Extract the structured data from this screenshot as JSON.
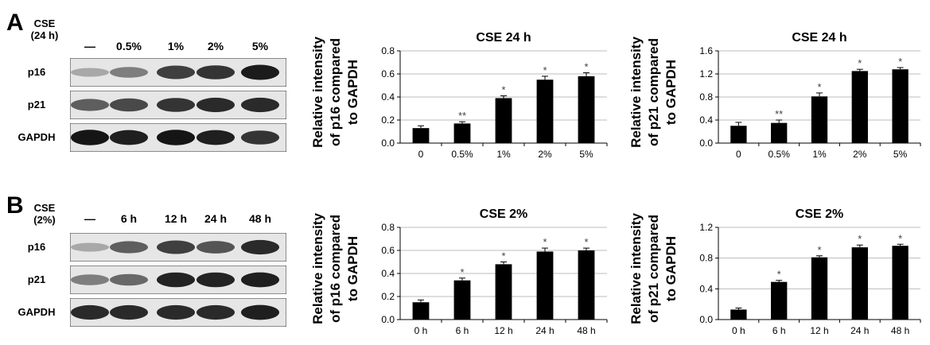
{
  "panels": [
    {
      "letter": "A",
      "blot": {
        "condition_label": [
          "CSE",
          "(24 h)"
        ],
        "lanes": [
          "—",
          "0.5%",
          "1%",
          "2%",
          "5%"
        ],
        "rows": [
          {
            "name": "p16",
            "intensities": [
              0.25,
              0.45,
              0.75,
              0.8,
              0.92
            ]
          },
          {
            "name": "p21",
            "intensities": [
              0.6,
              0.7,
              0.8,
              0.85,
              0.85
            ]
          },
          {
            "name": "GAPDH",
            "intensities": [
              0.95,
              0.9,
              0.95,
              0.9,
              0.8
            ]
          }
        ]
      }
    },
    {
      "letter": "B",
      "blot": {
        "condition_label": [
          "CSE",
          "(2%)"
        ],
        "lanes": [
          "—",
          "6 h",
          "12 h",
          "24 h",
          "48 h"
        ],
        "rows": [
          {
            "name": "p16",
            "intensities": [
              0.25,
              0.6,
              0.75,
              0.65,
              0.85
            ]
          },
          {
            "name": "p21",
            "intensities": [
              0.45,
              0.55,
              0.88,
              0.88,
              0.9
            ]
          },
          {
            "name": "GAPDH",
            "intensities": [
              0.85,
              0.85,
              0.85,
              0.85,
              0.9
            ]
          }
        ]
      }
    }
  ],
  "chart_data": [
    {
      "type": "bar",
      "title": "CSE 24 h",
      "ylabel": [
        "Relative intensity",
        "of p16 compared",
        "to GAPDH"
      ],
      "categories": [
        "0",
        "0.5%",
        "1%",
        "2%",
        "5%"
      ],
      "values": [
        0.13,
        0.17,
        0.39,
        0.55,
        0.58
      ],
      "errors": [
        0.02,
        0.015,
        0.02,
        0.03,
        0.03
      ],
      "significance": [
        "",
        "**",
        "*",
        "*",
        "*"
      ],
      "ylim": [
        0,
        0.8
      ],
      "yticks": [
        "0.0",
        "0.2",
        "0.4",
        "0.6",
        "0.8"
      ],
      "grid": true
    },
    {
      "type": "bar",
      "title": "CSE 24 h",
      "ylabel": [
        "Relative intensity",
        "of p21 compared",
        "to GAPDH"
      ],
      "categories": [
        "0",
        "0.5%",
        "1%",
        "2%",
        "5%"
      ],
      "values": [
        0.3,
        0.35,
        0.81,
        1.25,
        1.28
      ],
      "errors": [
        0.06,
        0.05,
        0.06,
        0.03,
        0.03
      ],
      "significance": [
        "",
        "**",
        "*",
        "*",
        "*"
      ],
      "ylim": [
        0,
        1.6
      ],
      "yticks": [
        "0.0",
        "0.4",
        "0.8",
        "1.2",
        "1.6"
      ],
      "grid": true
    },
    {
      "type": "bar",
      "title": "CSE 2%",
      "ylabel": [
        "Relative intensity",
        "of p16 compared",
        "to GAPDH"
      ],
      "categories": [
        "0 h",
        "6 h",
        "12 h",
        "24 h",
        "48 h"
      ],
      "values": [
        0.15,
        0.34,
        0.48,
        0.59,
        0.6
      ],
      "errors": [
        0.02,
        0.02,
        0.02,
        0.03,
        0.02
      ],
      "significance": [
        "",
        "*",
        "*",
        "*",
        "*"
      ],
      "ylim": [
        0,
        0.8
      ],
      "yticks": [
        "0.0",
        "0.2",
        "0.4",
        "0.6",
        "0.8"
      ],
      "grid": true
    },
    {
      "type": "bar",
      "title": "CSE 2%",
      "ylabel": [
        "Relative intensity",
        "of p21 compared",
        "to GAPDH"
      ],
      "categories": [
        "0 h",
        "6 h",
        "12 h",
        "24 h",
        "48 h"
      ],
      "values": [
        0.13,
        0.49,
        0.81,
        0.94,
        0.96
      ],
      "errors": [
        0.02,
        0.02,
        0.02,
        0.03,
        0.02
      ],
      "significance": [
        "",
        "*",
        "*",
        "*",
        "*"
      ],
      "ylim": [
        0,
        1.2
      ],
      "yticks": [
        "0.0",
        "0.4",
        "0.8",
        "1.2"
      ],
      "grid": true
    }
  ]
}
